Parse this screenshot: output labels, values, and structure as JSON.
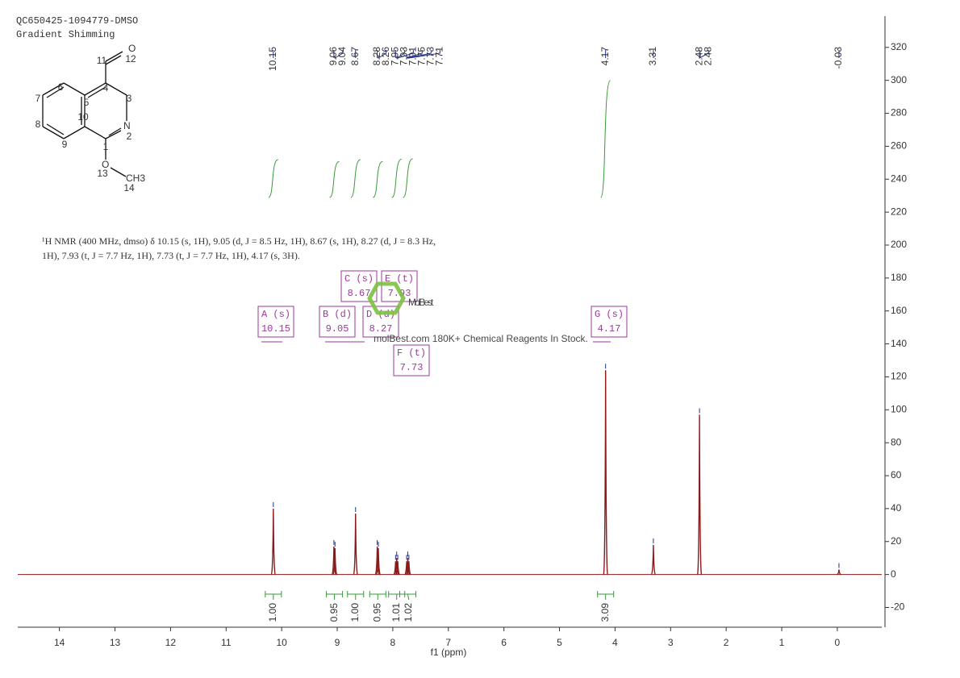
{
  "header": {
    "sample": "QC650425-1094779-DMSO",
    "method": "Gradient Shimming"
  },
  "description": [
    "¹H NMR (400 MHz, dmso) δ 10.15 (s, 1H), 9.05 (d, J = 8.5 Hz, 1H), 8.67 (s, 1H), 8.27 (d, J = 8.3 Hz,",
    "1H), 7.93 (t, J = 7.7 Hz, 1H), 7.73 (t, J = 7.7 Hz, 1H), 4.17 (s, 3H)."
  ],
  "structure": {
    "atoms": [
      "O",
      "N",
      "O",
      "CH3"
    ],
    "numbers": [
      "1",
      "2",
      "3",
      "4",
      "5",
      "6",
      "7",
      "8",
      "9",
      "10",
      "11",
      "12",
      "13",
      "14"
    ]
  },
  "multiplets": [
    {
      "label": "A (s)",
      "shift": "10.15"
    },
    {
      "label": "B (d)",
      "shift": "9.05"
    },
    {
      "label": "C (s)",
      "shift": "8.67"
    },
    {
      "label": "D (d)",
      "shift": "8.27"
    },
    {
      "label": "E (t)",
      "shift": "7.93"
    },
    {
      "label": "F (t)",
      "shift": "7.73"
    },
    {
      "label": "G (s)",
      "shift": "4.17"
    }
  ],
  "watermark": {
    "brand": "MolBest",
    "tagline": "molBest.com 180K+ Chemical Reagents In Stock."
  },
  "chart_data": {
    "type": "spectrum",
    "x_label": "f1 (ppm)",
    "color": "#8b1a1a",
    "integral_color": "#3a9a3a",
    "label_color": "#1f2f8f",
    "x": [
      10.15,
      9.06,
      9.04,
      8.67,
      8.28,
      8.26,
      7.95,
      7.93,
      7.91,
      7.75,
      7.73,
      7.71,
      4.17,
      3.31,
      2.48,
      -0.03
    ],
    "values": [
      40,
      17,
      16,
      37,
      17,
      16,
      8,
      10,
      8,
      8,
      10,
      8,
      124,
      18,
      97,
      3
    ],
    "peak_labels": [
      10.15,
      9.06,
      9.04,
      8.67,
      8.28,
      8.26,
      7.95,
      7.93,
      7.91,
      7.75,
      7.73,
      7.71,
      4.17,
      3.31,
      2.48,
      2.48,
      -0.03
    ],
    "integrals": [
      {
        "x": 10.15,
        "value": 1,
        "label": "1.00"
      },
      {
        "x": 9.05,
        "value": 0.95,
        "label": "0.95"
      },
      {
        "x": 8.67,
        "value": 1,
        "label": "1.00"
      },
      {
        "x": 8.27,
        "value": 0.95,
        "label": "0.95"
      },
      {
        "x": 7.93,
        "value": 1.01,
        "label": "1.01"
      },
      {
        "x": 7.73,
        "value": 1.02,
        "label": "1.02"
      },
      {
        "x": 4.17,
        "value": 3.09,
        "label": "3.09"
      }
    ],
    "xlim": [
      14.75,
      -0.8
    ],
    "xticks": [
      14,
      13,
      12,
      11,
      10,
      9,
      8,
      7,
      6,
      5,
      4,
      3,
      2,
      1,
      0
    ],
    "ylim": [
      -32,
      339
    ],
    "yticks": [
      -20,
      0,
      20,
      40,
      60,
      80,
      100,
      120,
      140,
      160,
      180,
      200,
      220,
      240,
      260,
      280,
      300,
      320
    ]
  }
}
